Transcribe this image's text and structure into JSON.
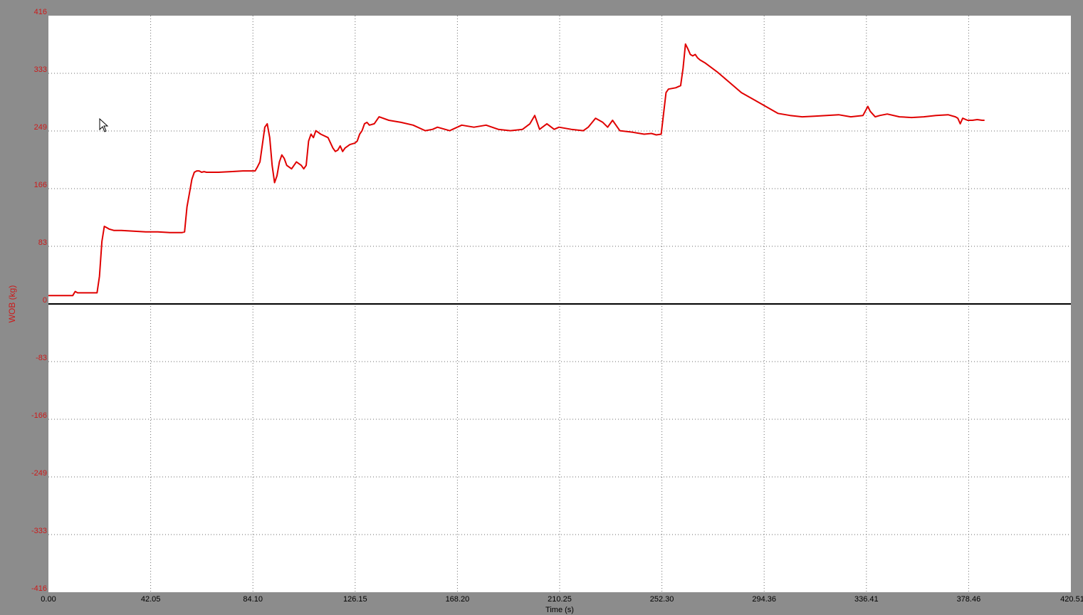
{
  "colors": {
    "frame": "#8c8c8c",
    "plot_background": "#ffffff",
    "grid": "#6b6b6b",
    "zero_line": "#000000",
    "series": "#e00000",
    "y_tick_text": "#cc1a1a",
    "x_tick_text": "#000000"
  },
  "chart_data": {
    "type": "line",
    "xlabel": "Time (s)",
    "ylabel": "WOB (kg)",
    "xlim": [
      0,
      420.51
    ],
    "ylim": [
      -416,
      416
    ],
    "x_ticks": [
      "0.00",
      "42.05",
      "84.10",
      "126.15",
      "168.20",
      "210.25",
      "252.30",
      "294.36",
      "336.41",
      "378.46",
      "420.51"
    ],
    "y_ticks": [
      "416",
      "333",
      "249",
      "166",
      "83",
      "0",
      "-83",
      "-166",
      "-249",
      "-333",
      "-416"
    ],
    "grid": true,
    "legend": "none",
    "series": [
      {
        "x": [
          0,
          10,
          11,
          12,
          20,
          21,
          22,
          23,
          24,
          25,
          26,
          27,
          30,
          35,
          40,
          45,
          50,
          55,
          56,
          57,
          58,
          59,
          60,
          61,
          62,
          63,
          64,
          65,
          70,
          75,
          80,
          85,
          86,
          87,
          88,
          89,
          90,
          91,
          92,
          93,
          94,
          95,
          96,
          97,
          98,
          100,
          102,
          104,
          105,
          106,
          107,
          108,
          109,
          110,
          112,
          115,
          117,
          118,
          119,
          120,
          121,
          122,
          124,
          126,
          127,
          128,
          129,
          130,
          131,
          132,
          134,
          136,
          140,
          145,
          150,
          155,
          158,
          160,
          165,
          170,
          175,
          180,
          185,
          190,
          195,
          198,
          200,
          202,
          205,
          208,
          210,
          215,
          220,
          222,
          225,
          228,
          230,
          232,
          235,
          240,
          245,
          248,
          250,
          252,
          253,
          254,
          255,
          258,
          260,
          261,
          262,
          263,
          264,
          265,
          266,
          267,
          268,
          270,
          275,
          280,
          285,
          290,
          295,
          300,
          305,
          310,
          315,
          320,
          325,
          330,
          335,
          337,
          338,
          340,
          342,
          345,
          350,
          355,
          360,
          365,
          370,
          373,
          374,
          375,
          376,
          378,
          380,
          382,
          384,
          385
        ],
        "values": [
          12,
          12,
          18,
          16,
          16,
          40,
          90,
          112,
          110,
          108,
          107,
          106,
          106,
          105,
          104,
          104,
          103,
          103,
          104,
          140,
          160,
          180,
          190,
          192,
          192,
          190,
          191,
          190,
          190,
          191,
          192,
          192,
          198,
          205,
          230,
          255,
          260,
          240,
          200,
          175,
          185,
          205,
          215,
          210,
          200,
          195,
          205,
          200,
          195,
          200,
          235,
          245,
          240,
          250,
          245,
          240,
          225,
          220,
          222,
          228,
          220,
          225,
          230,
          232,
          235,
          245,
          250,
          260,
          262,
          258,
          260,
          270,
          265,
          262,
          258,
          250,
          252,
          255,
          250,
          258,
          255,
          258,
          252,
          250,
          252,
          260,
          272,
          252,
          260,
          252,
          255,
          252,
          250,
          255,
          268,
          262,
          255,
          265,
          250,
          248,
          245,
          246,
          244,
          245,
          275,
          305,
          310,
          312,
          315,
          340,
          375,
          368,
          360,
          358,
          360,
          355,
          352,
          348,
          335,
          320,
          305,
          295,
          285,
          275,
          272,
          270,
          271,
          272,
          273,
          270,
          272,
          285,
          278,
          270,
          272,
          274,
          270,
          269,
          270,
          272,
          273,
          270,
          268,
          260,
          268,
          265,
          265,
          266,
          265,
          265
        ]
      }
    ]
  }
}
